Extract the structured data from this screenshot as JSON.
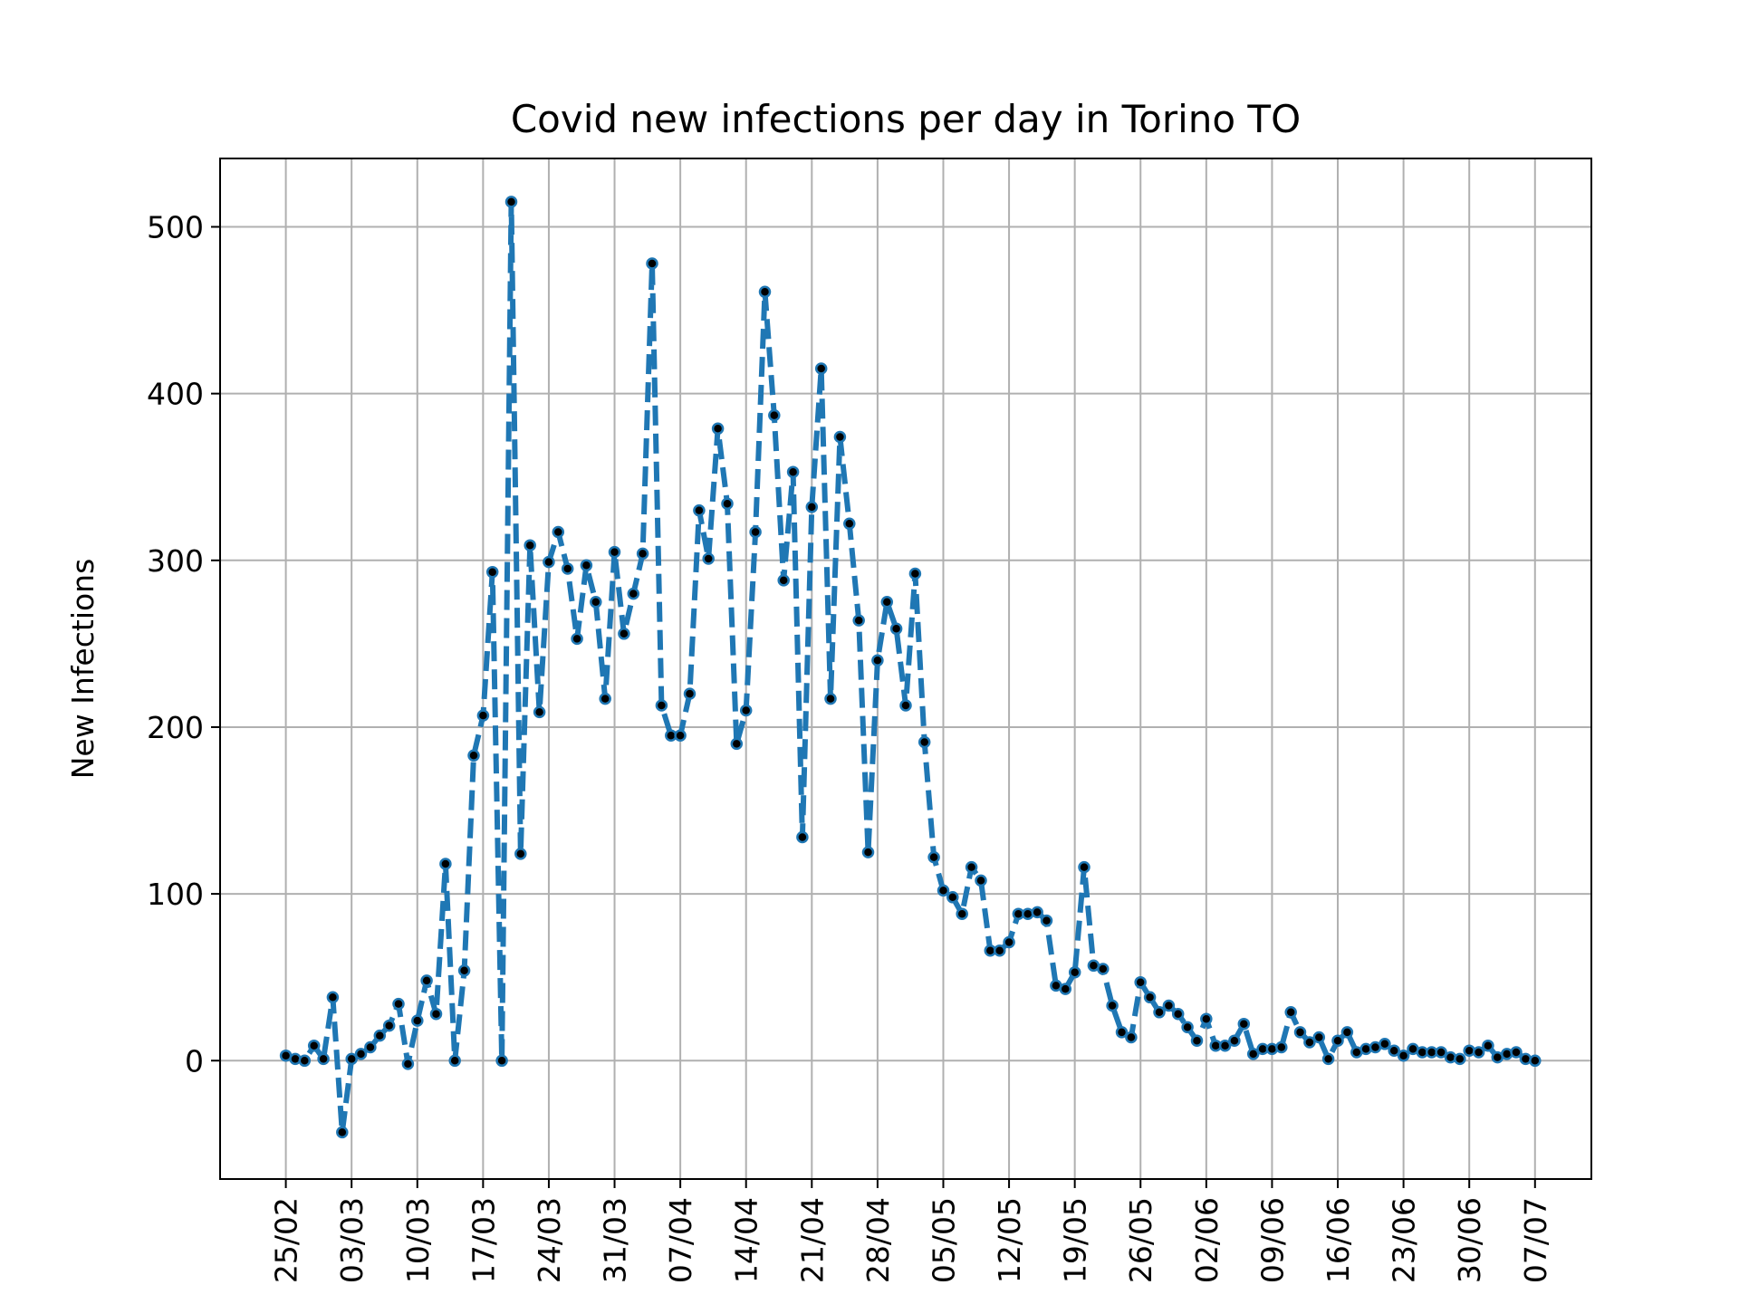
{
  "chart_data": {
    "type": "line",
    "title": "Covid new infections per day in Torino TO",
    "xlabel": "",
    "ylabel": "New Infections",
    "x_ticks": [
      "25/02",
      "03/03",
      "10/03",
      "17/03",
      "24/03",
      "31/03",
      "07/04",
      "14/04",
      "21/04",
      "28/04",
      "05/05",
      "12/05",
      "19/05",
      "26/05",
      "02/06",
      "09/06",
      "16/06",
      "23/06",
      "30/06",
      "07/07"
    ],
    "y_ticks": [
      0,
      100,
      200,
      300,
      400,
      500
    ],
    "xlim": [
      "2020-02-18",
      "2020-07-13"
    ],
    "ylim": [
      -71,
      541
    ],
    "grid": true,
    "colors": {
      "line": "#1f77b4",
      "marker": "#000000",
      "grid": "#b0b0b0"
    },
    "series": [
      {
        "start_date": "2020-02-25",
        "values": [
          3,
          1,
          0,
          9,
          1,
          38,
          -43,
          1,
          4,
          8,
          15,
          21,
          34,
          -2,
          24,
          48,
          28,
          118,
          0,
          54,
          183,
          207,
          293,
          0,
          515,
          124,
          309,
          209,
          299,
          317,
          295,
          253,
          297,
          275,
          217,
          305,
          256,
          280,
          304,
          478,
          213,
          195,
          195,
          220,
          330,
          301,
          379,
          334,
          190,
          210,
          317,
          461,
          387,
          288,
          353,
          134,
          332,
          415,
          217,
          374,
          322,
          264,
          125,
          240,
          275,
          259,
          213,
          292,
          191,
          122,
          102,
          98,
          88,
          116,
          108,
          66,
          66,
          71,
          88,
          88,
          89,
          84,
          45,
          43,
          53,
          116,
          57,
          55,
          33,
          17,
          14,
          47,
          38,
          29,
          33,
          28,
          20,
          12,
          25,
          9,
          9,
          12,
          22,
          4,
          7,
          7,
          8,
          29,
          17,
          11,
          14,
          1,
          12,
          17,
          5,
          7,
          8,
          10,
          6,
          3,
          7,
          5,
          5,
          5,
          2,
          1,
          6,
          5,
          9,
          2,
          4,
          5,
          1,
          0
        ]
      }
    ]
  }
}
